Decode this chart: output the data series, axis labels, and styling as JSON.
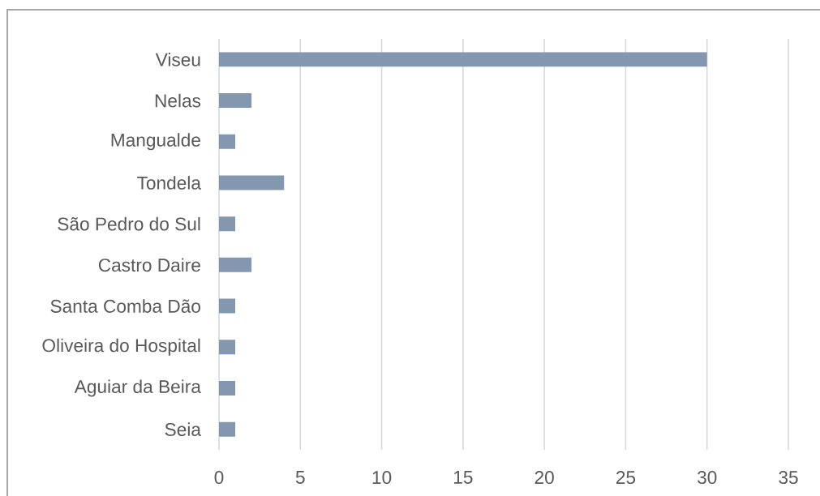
{
  "chart_data": {
    "type": "bar",
    "orientation": "horizontal",
    "categories": [
      "Viseu",
      "Nelas",
      "Mangualde",
      "Tondela",
      "São Pedro do Sul",
      "Castro Daire",
      "Santa Comba Dão",
      "Oliveira do Hospital",
      "Aguiar da Beira",
      "Seia"
    ],
    "values": [
      30,
      2,
      1,
      4,
      1,
      2,
      1,
      1,
      1,
      1
    ],
    "color": "#8497b0",
    "xlim": [
      0,
      35
    ],
    "xticks": [
      0,
      5,
      10,
      15,
      20,
      25,
      30,
      35
    ],
    "grid": "x"
  }
}
